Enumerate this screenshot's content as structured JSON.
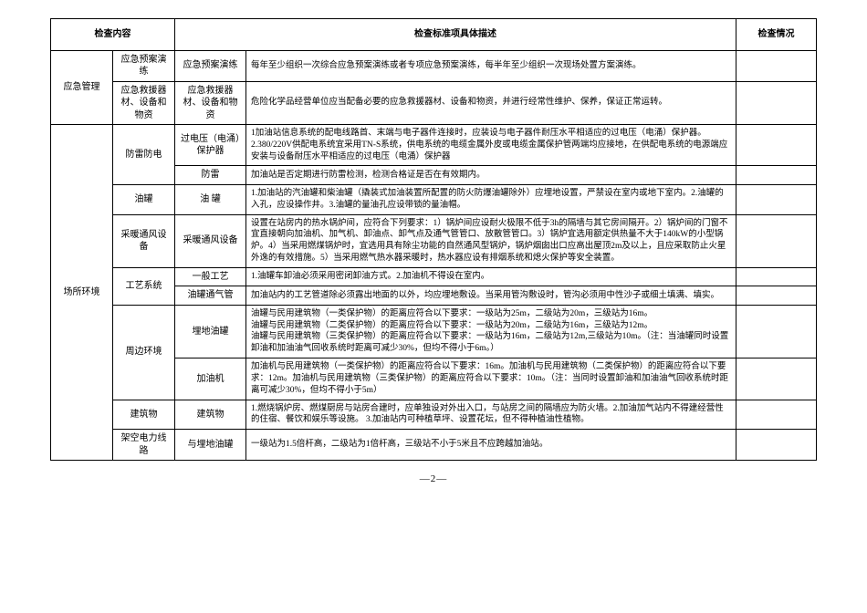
{
  "header": {
    "col_content": "检查内容",
    "col_desc": "检查标准项具体描述",
    "col_status": "检查情况"
  },
  "rows": [
    {
      "cat": "应急管理",
      "sub": "应急预案演练",
      "item": "应急预案演练",
      "desc": "每年至少组织一次综合应急预案演练或者专项应急预案演练，每半年至少组织一次现场处置方案演练。"
    },
    {
      "sub": "应急救援器材、设备和物资",
      "item": "应急救援器材、设备和物资",
      "desc": "危险化学品经营单位应当配备必要的应急救援器材、设备和物资，并进行经常性维护、保养，保证正常运转。"
    },
    {
      "cat": "场所环境",
      "sub": "防雷防电",
      "item": "过电压（电涌）保护器",
      "desc": "1加油站信息系统的配电线路首、末端与电子器件连接时，应装设与电子器件耐压水平相适应的过电压（电涌）保护器。2.380/220V供配电系统宜采用TN-S系统，供电系统的电缆金属外皮或电缆金属保护管两端均应接地，在供配电系统的电源端应安装与设备耐压水平相适应的过电压（电涌）保护器"
    },
    {
      "item": "防雷",
      "desc": "加油站是否定期进行防雷检测，检测合格证是否在有效期内。"
    },
    {
      "sub": "油罐",
      "item": "油 罐",
      "desc": "1.加油站的汽油罐和柴油罐（撬装式加油装置所配置的防火防爆油罐除外）应埋地设置，严禁设在室内或地下室内。2.油罐的入孔，应设操作井。3.油罐的量油孔应设带锁的量油帽。"
    },
    {
      "sub": "采暖通风设备",
      "item": "采暖通风设备",
      "desc": "设置在站房内的热水锅炉间，应符合下列要求：1）锅炉间应设耐火极限不低于3h的隔墙与其它房间隔开。2）锅炉间的门窗不宜直接朝向加油机、加气机、卸油点、卸气点及通气管管口、放散管管口。3）锅炉宜选用额定供热量不大于140kW的小型锅炉。4）当采用燃煤锅炉时，宜选用具有除尘功能的自然通风型锅炉，锅炉烟囱出口应高出屋顶2m及以上，且应采取防止火星外逸的有效措施。5）当采用燃气热水器采暖时，热水器应设有排烟系统和熄火保护等安全装置。"
    },
    {
      "sub": "工艺系统",
      "item": "一般工艺",
      "desc": "1.油罐车卸油必须采用密闭卸油方式。2.加油机不得设在室内。"
    },
    {
      "item": "油罐通气管",
      "desc": "加油站内的工艺管道除必须露出地面的以外，均应埋地敷设。当采用管沟敷设时，管沟必须用中性沙子或细土填满、填实。"
    },
    {
      "sub": "周边环境",
      "item": "埋地油罐",
      "desc": "油罐与民用建筑物（一类保护物）的距离应符合以下要求：一级站为25m，二级站为20m，三级站为16m。\n油罐与民用建筑物（二类保护物）的距离应符合以下要求：一级站为20m，二级站为16m，三级站为12m。\n油罐与民用建筑物（三类保护物）的距离应符合以下要求：一级站为16m，二级站为12m,三级站为10m。（注：当油罐同时设置卸油和加油油气回收系统时距离可减少30%，但均不得小于6m。）"
    },
    {
      "item": "加油机",
      "desc": "加油机与民用建筑物（一类保护物）的距离应符合以下要求：16m。加油机与民用建筑物（二类保护物）的距离应符合以下要求：12m。加油机与民用建筑物（三类保护物）的距离应符合以下要求：10m。（注：当同时设置卸油和加油油气回收系统时距离可减少30%，但均不得小于5m）"
    },
    {
      "sub": "建筑物",
      "item": "建筑物",
      "desc": "1.燃烧锅炉房、燃煤厨房与站房合建时，应单独设对外出入口，与站房之间的隔墙应为防火墙。2.加油加气站内不得建经营性的住宿、餐饮和娱乐等设施。 3.加油站内可种植草坪、设置花坛，但不得种植油性植物。"
    },
    {
      "sub": "架空电力线路",
      "item": "与埋地油罐",
      "desc": "一级站为1.5倍杆高，二级站为1倍杆高，三级站不小于5米且不应跨越加油站。"
    }
  ],
  "footer": "—2—"
}
